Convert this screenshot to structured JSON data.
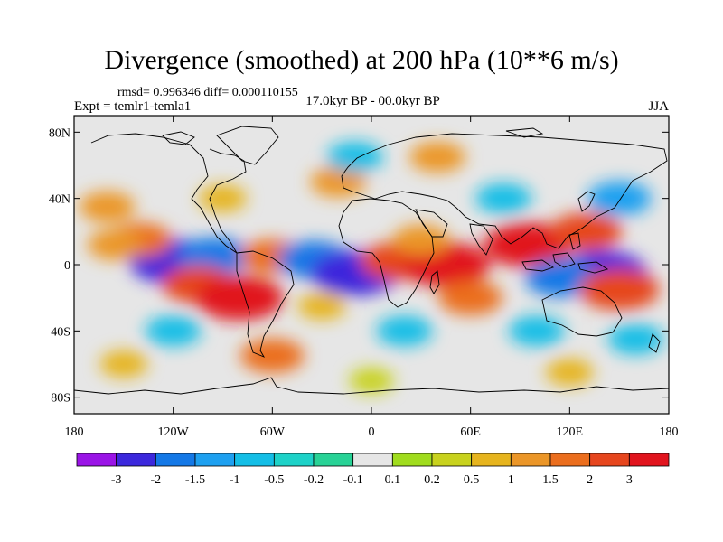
{
  "title": "Divergence (smoothed) at 200 hPa (10**6 m/s)",
  "stats": "rmsd= 0.996346 diff= 0.000110155",
  "experiment": "Expt = temlr1-temla1",
  "period": "17.0kyr BP - 00.0kyr BP",
  "season": "JJA",
  "map": {
    "lon_range": [
      -180,
      180
    ],
    "lat_range": [
      -90,
      90
    ],
    "lon_ticks": [
      {
        "value": -180,
        "label": "180"
      },
      {
        "value": -120,
        "label": "120W"
      },
      {
        "value": -60,
        "label": "60W"
      },
      {
        "value": 0,
        "label": "0"
      },
      {
        "value": 60,
        "label": "60E"
      },
      {
        "value": 120,
        "label": "120E"
      },
      {
        "value": 180,
        "label": "180"
      }
    ],
    "lat_ticks": [
      {
        "value": 80,
        "label": "80N"
      },
      {
        "value": 40,
        "label": "40N"
      },
      {
        "value": 0,
        "label": "0"
      },
      {
        "value": -40,
        "label": "40S"
      },
      {
        "value": -80,
        "label": "80S"
      }
    ]
  },
  "colorbar": {
    "colors": [
      "#9a14e6",
      "#3c28dc",
      "#1478e6",
      "#1ea0f0",
      "#14bee6",
      "#1ed2c8",
      "#28d296",
      "#e6e6e6",
      "#a0dc1e",
      "#c8d21e",
      "#e6b41e",
      "#eb9628",
      "#eb6e1e",
      "#e6461e",
      "#e1141e"
    ],
    "labels": [
      "-3",
      "-2",
      "-1.5",
      "-1",
      "-0.5",
      "-0.2",
      "-0.1",
      "0.1",
      "0.2",
      "0.5",
      "1",
      "1.5",
      "2",
      "3"
    ]
  },
  "field_blobs": [
    {
      "lon": -120,
      "lat": 2,
      "value": -3
    },
    {
      "lon": -95,
      "lat": 5,
      "value": -2
    },
    {
      "lon": -140,
      "lat": 15,
      "value": 1.5
    },
    {
      "lon": -155,
      "lat": 12,
      "value": 1
    },
    {
      "lon": -105,
      "lat": -12,
      "value": 2
    },
    {
      "lon": -80,
      "lat": -20,
      "value": 3
    },
    {
      "lon": -60,
      "lat": 5,
      "value": 1.5
    },
    {
      "lon": -35,
      "lat": 3,
      "value": -2
    },
    {
      "lon": -10,
      "lat": -5,
      "value": -3
    },
    {
      "lon": 15,
      "lat": 2,
      "value": 2
    },
    {
      "lon": 45,
      "lat": 0,
      "value": 3
    },
    {
      "lon": 30,
      "lat": 15,
      "value": 1
    },
    {
      "lon": 60,
      "lat": -20,
      "value": 1.5
    },
    {
      "lon": 95,
      "lat": 12,
      "value": 3
    },
    {
      "lon": 130,
      "lat": 20,
      "value": 2
    },
    {
      "lon": 140,
      "lat": -5,
      "value": -3
    },
    {
      "lon": 115,
      "lat": -8,
      "value": -2
    },
    {
      "lon": 150,
      "lat": -15,
      "value": 2.5
    },
    {
      "lon": 150,
      "lat": 40,
      "value": -1.5
    },
    {
      "lon": -160,
      "lat": 35,
      "value": 1
    },
    {
      "lon": -20,
      "lat": 50,
      "value": 1
    },
    {
      "lon": -10,
      "lat": 65,
      "value": -1
    },
    {
      "lon": 40,
      "lat": 65,
      "value": 1
    },
    {
      "lon": -120,
      "lat": -40,
      "value": -1
    },
    {
      "lon": -60,
      "lat": -55,
      "value": 1.5
    },
    {
      "lon": 20,
      "lat": -40,
      "value": -1
    },
    {
      "lon": 100,
      "lat": -40,
      "value": -1
    },
    {
      "lon": 160,
      "lat": -45,
      "value": -1
    },
    {
      "lon": -30,
      "lat": -25,
      "value": 0.5
    },
    {
      "lon": 80,
      "lat": 40,
      "value": -1
    },
    {
      "lon": -90,
      "lat": 40,
      "value": 0.5
    },
    {
      "lon": -150,
      "lat": -60,
      "value": 0.5
    },
    {
      "lon": 0,
      "lat": -70,
      "value": 0.3
    },
    {
      "lon": 120,
      "lat": -65,
      "value": 0.5
    }
  ]
}
